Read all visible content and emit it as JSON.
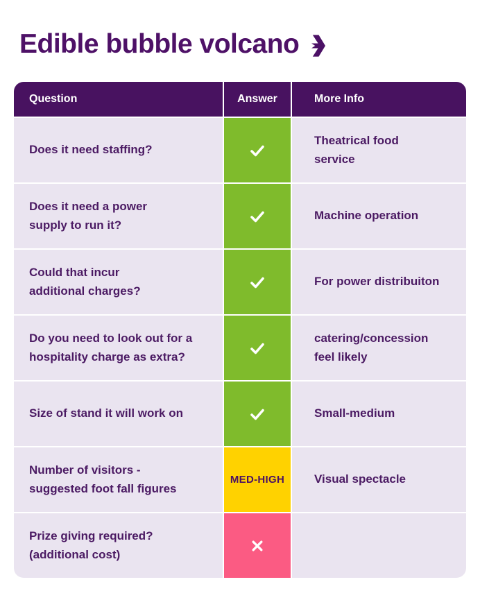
{
  "page": {
    "title": "Edible bubble volcano"
  },
  "colors": {
    "title": "#4e1167",
    "header_bg": "#481260",
    "row_bg": "#eae4f0",
    "body_text": "#4b1a63",
    "green": "#7fbb2c",
    "yellow": "#ffd200",
    "pink": "#fb5b83",
    "mark": "#ffffff"
  },
  "table": {
    "headers": [
      "Question",
      "Answer",
      "More Info"
    ],
    "rows": [
      {
        "question": "Does it need staffing?",
        "answer": {
          "type": "check",
          "color": "green"
        },
        "info": "Theatrical food\nservice"
      },
      {
        "question": "Does it need a power\nsupply to run it?",
        "answer": {
          "type": "check",
          "color": "green"
        },
        "info": "Machine operation"
      },
      {
        "question": "Could that incur\nadditional charges?",
        "answer": {
          "type": "check",
          "color": "green"
        },
        "info": "For power distribuiton"
      },
      {
        "question": "Do you need to look out for a\nhospitality charge as extra?",
        "answer": {
          "type": "check",
          "color": "green"
        },
        "info": "catering/concession\nfeel likely"
      },
      {
        "question": "Size of stand it will work on",
        "answer": {
          "type": "check",
          "color": "green"
        },
        "info": "Small-medium"
      },
      {
        "question": "Number of visitors -\nsuggested foot fall figures",
        "answer": {
          "type": "text",
          "label": "MED-HIGH",
          "color": "yellow"
        },
        "info": "Visual spectacle"
      },
      {
        "question": "Prize giving required?\n(additional cost)",
        "answer": {
          "type": "cross",
          "color": "pink"
        },
        "info": ""
      }
    ]
  }
}
